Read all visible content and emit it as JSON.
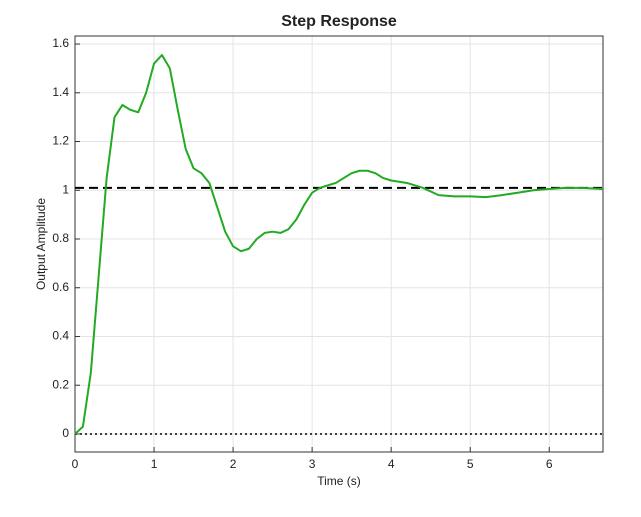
{
  "chart_data": {
    "type": "line",
    "title": "Step Response",
    "x_label": "Time (s)",
    "y_label": "Output Amplitude",
    "x": [
      0,
      0.1,
      0.2,
      0.3,
      0.4,
      0.5,
      0.6,
      0.7,
      0.8,
      0.9,
      1.0,
      1.1,
      1.2,
      1.3,
      1.4,
      1.5,
      1.6,
      1.7,
      1.8,
      1.9,
      2.0,
      2.1,
      2.2,
      2.3,
      2.4,
      2.5,
      2.6,
      2.7,
      2.8,
      2.9,
      3.0,
      3.1,
      3.2,
      3.3,
      3.4,
      3.5,
      3.6,
      3.7,
      3.8,
      3.9,
      4.0,
      4.2,
      4.4,
      4.6,
      4.8,
      5.0,
      5.2,
      5.4,
      5.6,
      5.8,
      6.0,
      6.2,
      6.4,
      6.68
    ],
    "series": [
      {
        "color": "#22aa22",
        "values": [
          0,
          0.03,
          0.25,
          0.65,
          1.05,
          1.3,
          1.35,
          1.33,
          1.32,
          1.4,
          1.52,
          1.555,
          1.5,
          1.33,
          1.17,
          1.09,
          1.07,
          1.03,
          0.93,
          0.83,
          0.77,
          0.75,
          0.76,
          0.8,
          0.825,
          0.83,
          0.825,
          0.84,
          0.88,
          0.94,
          0.99,
          1.01,
          1.02,
          1.03,
          1.05,
          1.07,
          1.08,
          1.08,
          1.07,
          1.05,
          1.04,
          1.03,
          1.01,
          0.98,
          0.975,
          0.975,
          0.972,
          0.98,
          0.99,
          1.0,
          1.005,
          1.01,
          1.01,
          1.005
        ]
      }
    ],
    "reference_lines": [
      {
        "value": 1.01,
        "style": "dashed"
      },
      {
        "value": 0,
        "style": "dotted"
      }
    ],
    "xlim": [
      0,
      6.68
    ],
    "ylim": [
      -0.074,
      1.633
    ],
    "xticks": [
      0,
      1,
      2,
      3,
      4,
      5,
      6
    ],
    "yticks": [
      0,
      0.2,
      0.4,
      0.6,
      0.8,
      1,
      1.2,
      1.4,
      1.6
    ],
    "grid": true
  }
}
